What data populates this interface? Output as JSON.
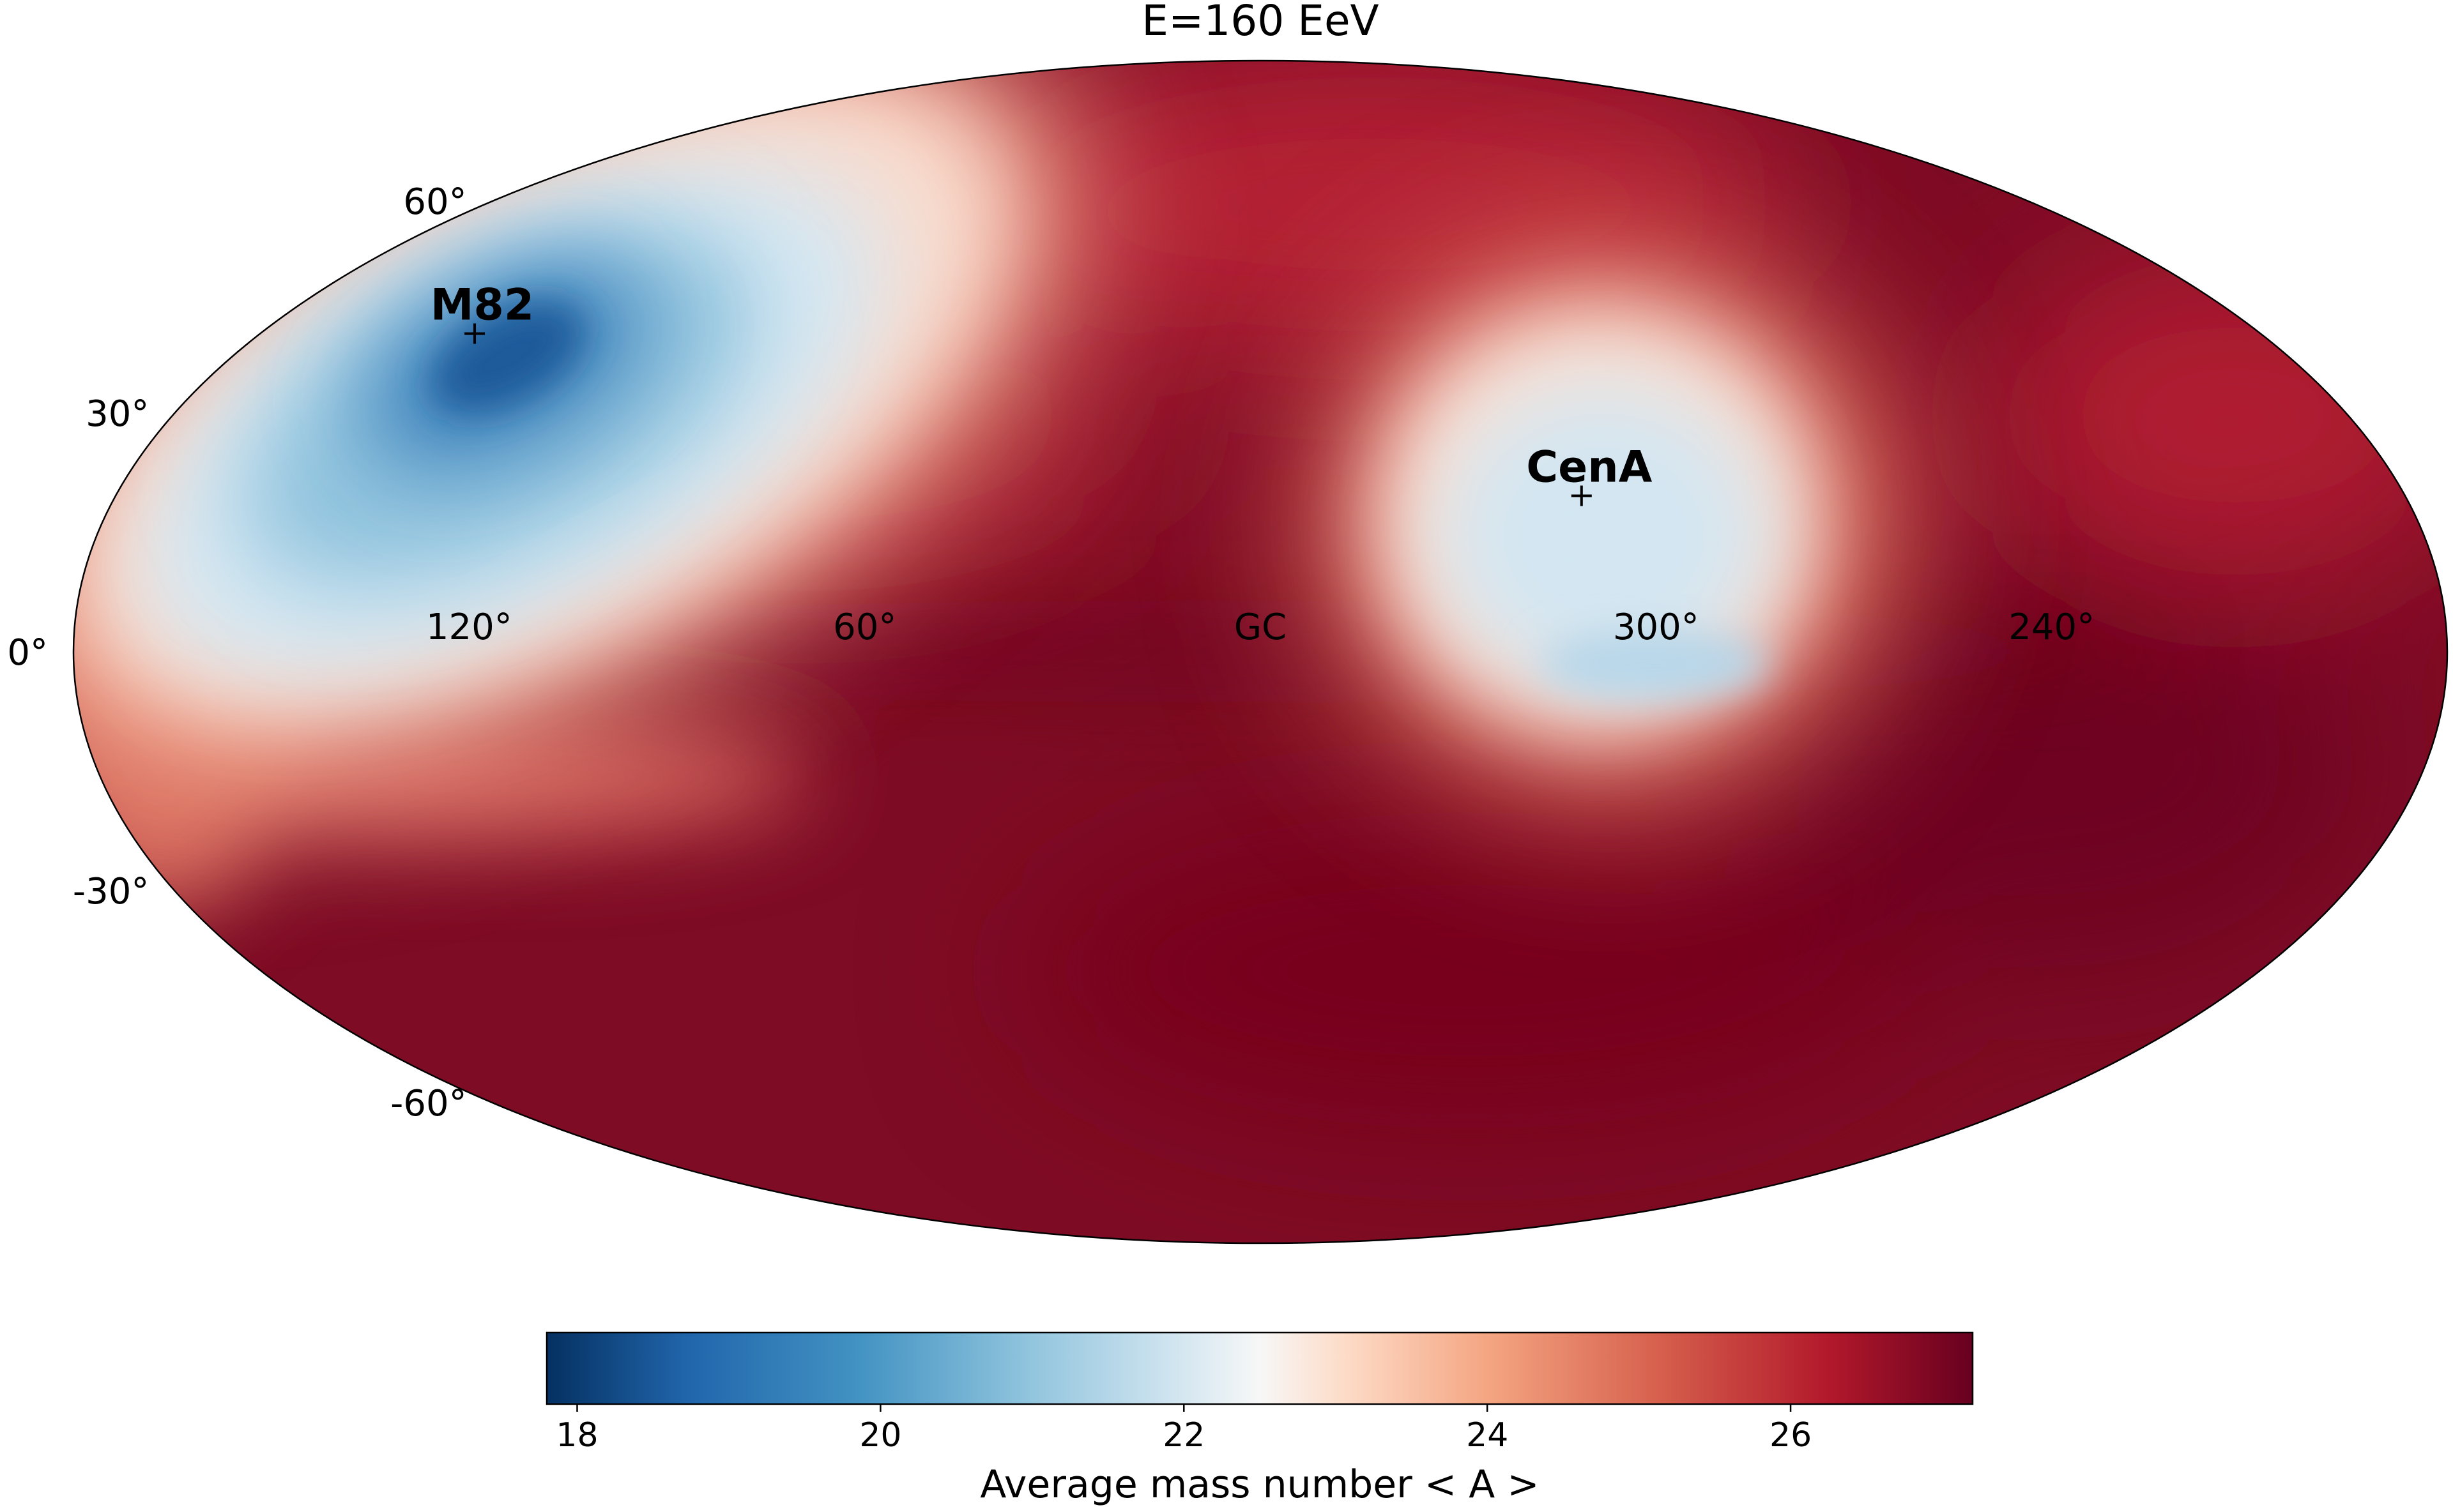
{
  "chart_data": {
    "type": "heatmap",
    "projection": "mollweide (galactic coordinates)",
    "title": "E=160 EeV",
    "colorbar": {
      "label": "Average mass number < A >",
      "range": [
        17.8,
        27.2
      ],
      "ticks": [
        18,
        20,
        22,
        24,
        26
      ],
      "tick_labels": [
        "18",
        "20",
        "22",
        "24",
        "26"
      ],
      "colormap": "RdBu_r"
    },
    "latitude_labels": [
      {
        "text": "60°",
        "lat": 60
      },
      {
        "text": "30°",
        "lat": 30
      },
      {
        "text": "0°",
        "lat": 0
      },
      {
        "text": "-30°",
        "lat": -30
      },
      {
        "text": "-60°",
        "lat": -60
      }
    ],
    "longitude_labels": [
      {
        "text": "120°",
        "lon": 120
      },
      {
        "text": "60°",
        "lon": 60
      },
      {
        "text": "GC",
        "lon": 0
      },
      {
        "text": "300°",
        "lon": 300
      },
      {
        "text": "240°",
        "lon": 240
      }
    ],
    "sources": [
      {
        "name": "M82",
        "lon": 141.4,
        "lat": 40.6
      },
      {
        "name": "CenA",
        "lon": 309.5,
        "lat": 19.4
      }
    ],
    "regions": [
      {
        "description": "minimum near M82",
        "lon": 141,
        "lat": 40,
        "value": 17.9
      },
      {
        "description": "low plateau around CenA",
        "lon": 308,
        "lat": 12,
        "value": 21.3
      },
      {
        "description": "background",
        "value": 26.9
      }
    ]
  }
}
